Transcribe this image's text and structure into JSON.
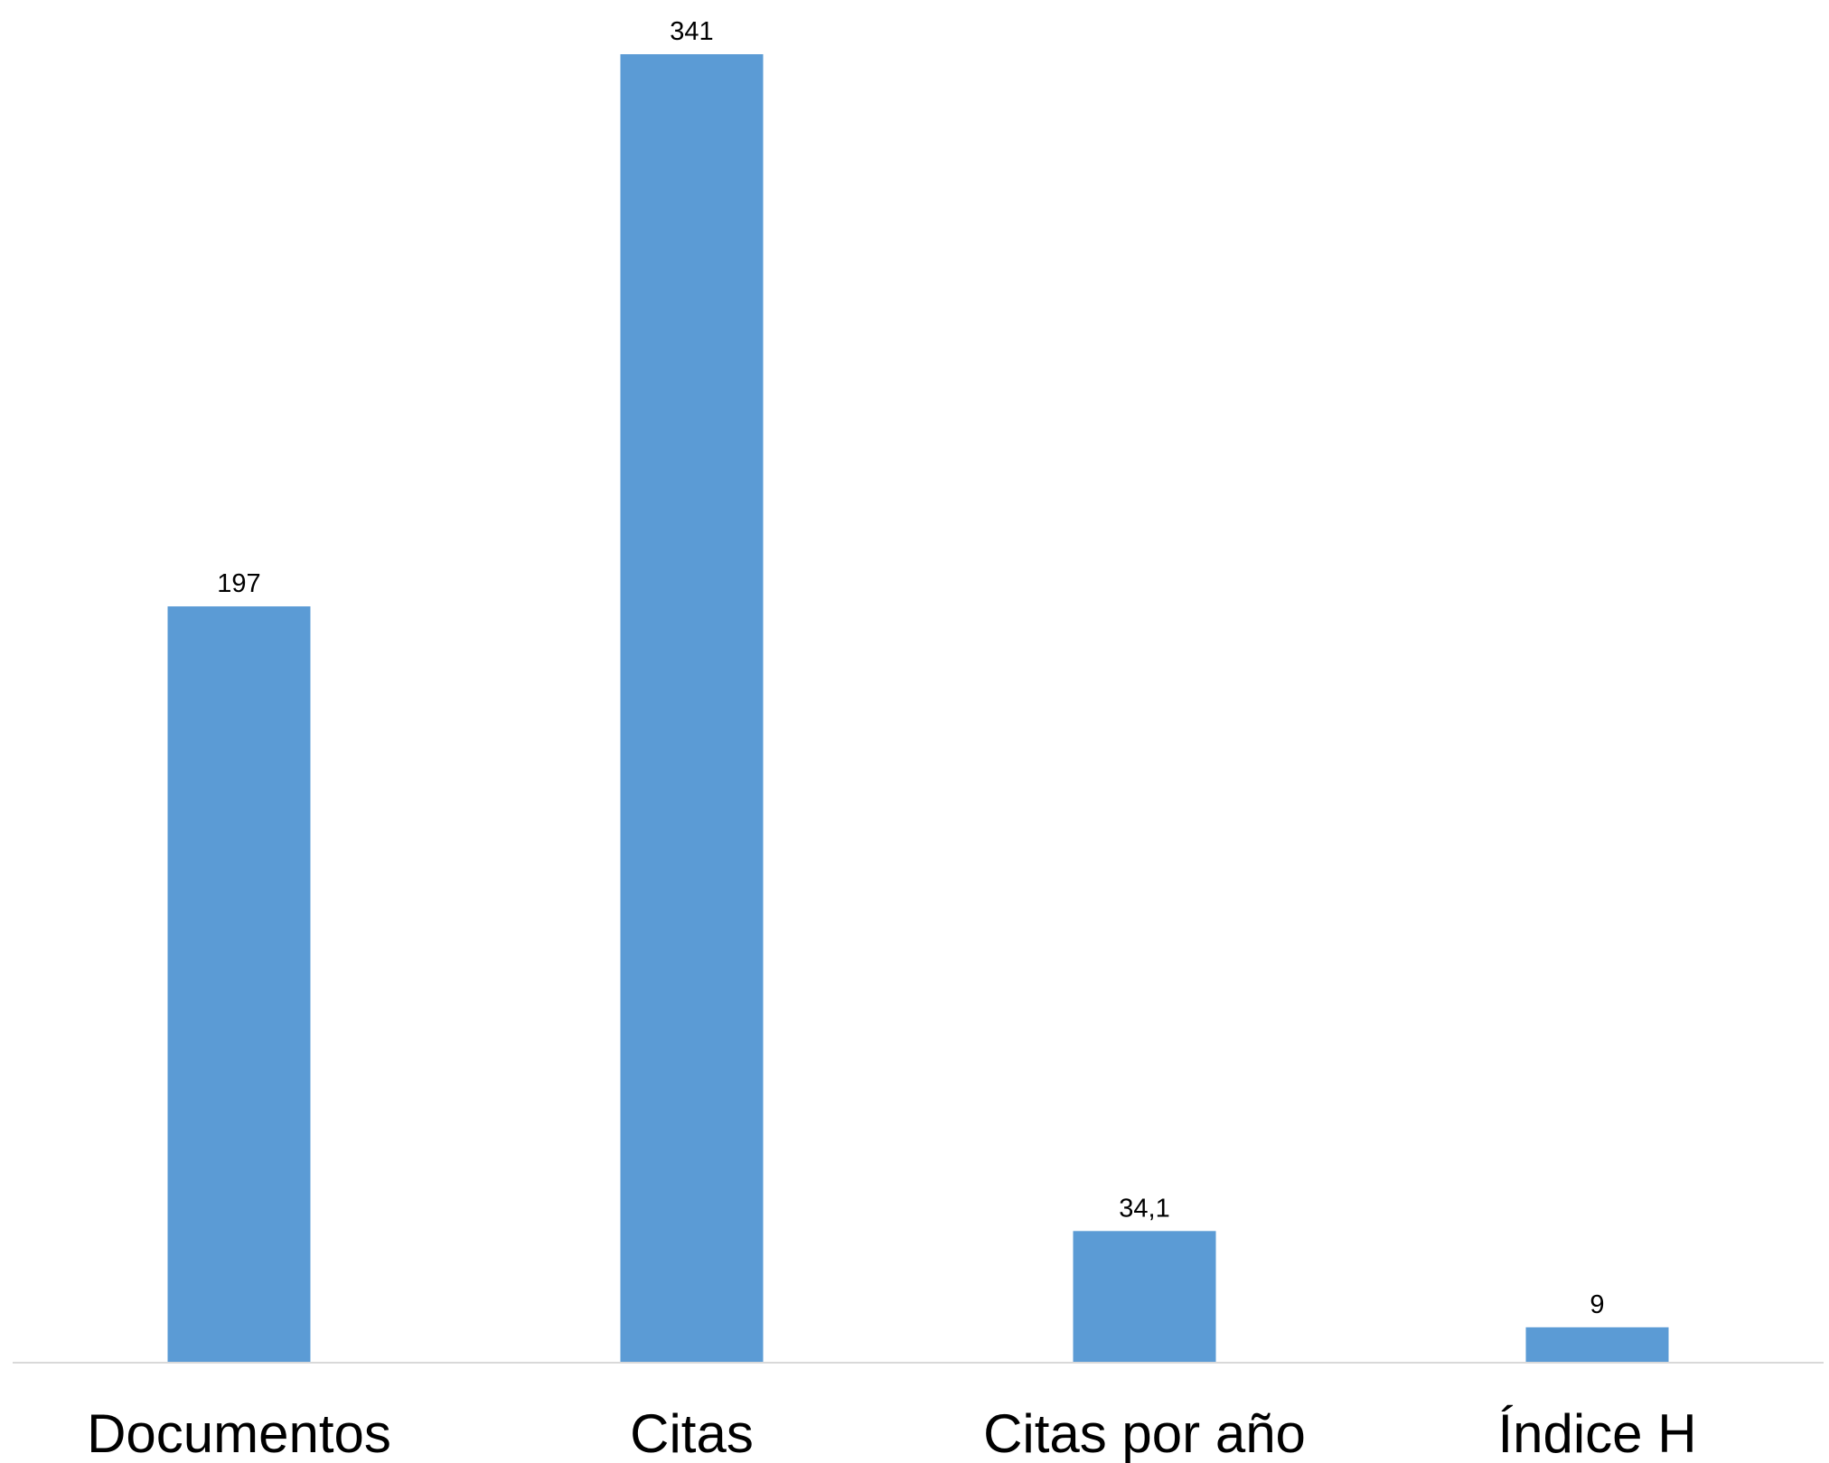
{
  "chart_data": {
    "type": "bar",
    "categories": [
      "Documentos",
      "Citas",
      "Citas por año",
      "Índice H"
    ],
    "values": [
      197,
      341,
      34.1,
      9
    ],
    "value_labels": [
      "197",
      "341",
      "34,1",
      "9"
    ],
    "ylim": [
      0,
      341
    ],
    "grid": false,
    "legend": "none",
    "colors": {
      "bar": "#5B9BD5",
      "axis": "#D9D9D9",
      "text": "#000000"
    }
  }
}
